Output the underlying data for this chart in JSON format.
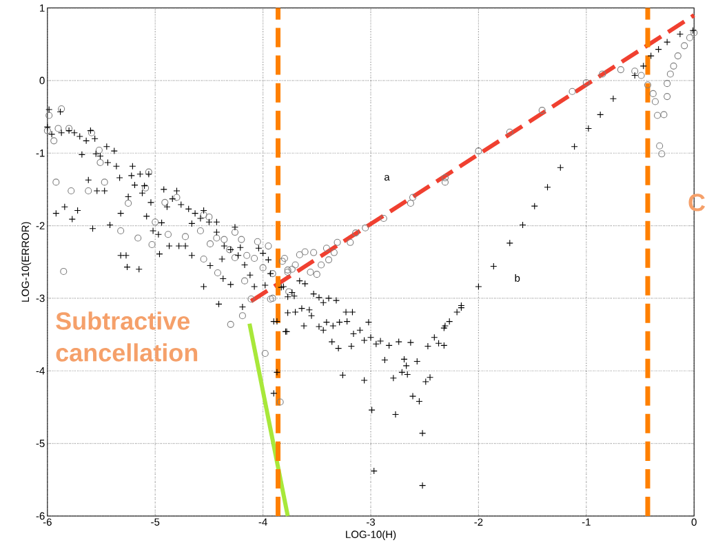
{
  "chart_data": {
    "type": "scatter",
    "xlabel": "LOG-10(H)",
    "ylabel": "LOG-10(ERROR)",
    "xlim": [
      -6,
      0
    ],
    "ylim": [
      -6,
      1
    ],
    "xticks": [
      -6,
      -5,
      -4,
      -3,
      -2,
      -1,
      0
    ],
    "yticks": [
      -6,
      -5,
      -4,
      -3,
      -2,
      -1,
      0,
      1
    ],
    "grid": true,
    "series": [
      {
        "marker": "circle",
        "color": "#7f7f7f",
        "x": [
          -5.985,
          -6.0,
          -5.94,
          -5.9,
          -5.8,
          -5.87,
          -5.59,
          -5.92,
          -5.78,
          -5.62,
          -5.47,
          -5.85,
          -5.51,
          -5.52,
          -5.32,
          -5.25,
          -5.16,
          -5.06,
          -5.09,
          -5.03,
          -5.0,
          -4.88,
          -4.91,
          -4.8,
          -4.72,
          -4.58,
          -4.55,
          -4.5,
          -4.55,
          -4.49,
          -4.43,
          -4.42,
          -4.36,
          -4.31,
          -4.26,
          -4.26,
          -4.2,
          -4.15,
          -4.17,
          -4.08,
          -4.05,
          -4.0,
          -3.95,
          -3.91,
          -4.11,
          -4.19,
          -4.3,
          -3.82,
          -3.73,
          -3.77,
          -3.93,
          -3.98,
          -3.84,
          -3.91,
          -3.76,
          -3.77,
          -3.8,
          -3.7,
          -3.66,
          -3.61,
          -3.53,
          -3.56,
          -3.5,
          -3.46,
          -3.41,
          -3.39,
          -3.34,
          -3.31,
          -3.19,
          -3.14,
          -3.05,
          -2.88,
          -2.63,
          -2.31,
          -2.61,
          -2.31,
          -2.0,
          -1.71,
          -1.41,
          -1.13,
          -1.0,
          -0.85,
          -0.68,
          -0.55,
          -0.49,
          -0.43,
          -0.38,
          -0.36,
          -0.34,
          -0.28,
          -0.32,
          -0.3,
          -0.25,
          -0.25,
          -0.22,
          -0.19,
          -0.15,
          -0.09,
          -0.04,
          0.0
        ],
        "values": [
          -0.48,
          -0.69,
          -0.83,
          -0.66,
          -0.66,
          -0.39,
          -0.72,
          -1.4,
          -1.52,
          -1.52,
          -1.4,
          -2.63,
          -1.13,
          -0.96,
          -2.07,
          -1.69,
          -2.17,
          -1.26,
          -1.48,
          -2.26,
          -1.95,
          -2.12,
          -1.68,
          -1.61,
          -2.15,
          -2.07,
          -1.85,
          -1.88,
          -2.46,
          -2.25,
          -2.17,
          -2.65,
          -2.19,
          -2.33,
          -2.44,
          -2.09,
          -2.19,
          -2.41,
          -2.76,
          -2.45,
          -2.22,
          -2.58,
          -2.28,
          -2.66,
          -3.01,
          -3.24,
          -3.36,
          -2.49,
          -2.6,
          -2.64,
          -3.01,
          -3.76,
          -4.43,
          -3.0,
          -2.91,
          -2.61,
          -2.45,
          -2.54,
          -2.4,
          -2.36,
          -2.37,
          -2.64,
          -2.67,
          -2.54,
          -2.31,
          -2.47,
          -2.37,
          -2.23,
          -2.23,
          -2.1,
          -2.03,
          -1.9,
          -1.69,
          -1.4,
          -1.61,
          -1.34,
          -0.97,
          -0.71,
          -0.41,
          -0.15,
          -0.03,
          0.09,
          0.15,
          0.13,
          0.07,
          -0.06,
          -0.18,
          -0.29,
          -0.48,
          -0.47,
          -0.9,
          -1.01,
          -0.22,
          -0.04,
          0.09,
          0.2,
          0.34,
          0.48,
          0.59,
          0.66
        ]
      },
      {
        "marker": "cross",
        "color": "#000000",
        "x": [
          -5.985,
          -5.88,
          -6.0,
          -5.96,
          -5.87,
          -5.8,
          -5.75,
          -5.7,
          -5.64,
          -5.6,
          -5.56,
          -5.68,
          -5.55,
          -5.45,
          -5.38,
          -5.51,
          -5.44,
          -5.36,
          -5.33,
          -5.62,
          -5.54,
          -5.47,
          -5.21,
          -5.22,
          -5.14,
          -5.06,
          -5.19,
          -5.1,
          -5.25,
          -5.12,
          -5.04,
          -5.08,
          -5.32,
          -5.92,
          -5.84,
          -5.77,
          -5.72,
          -5.58,
          -5.42,
          -5.32,
          -5.27,
          -5.26,
          -5.15,
          -5.02,
          -4.97,
          -4.94,
          -4.96,
          -4.92,
          -4.8,
          -4.89,
          -4.84,
          -4.76,
          -4.69,
          -4.63,
          -4.55,
          -4.58,
          -4.5,
          -4.43,
          -4.66,
          -4.43,
          -4.87,
          -4.78,
          -4.72,
          -4.66,
          -4.49,
          -4.38,
          -4.55,
          -4.37,
          -4.3,
          -4.26,
          -4.36,
          -4.3,
          -4.21,
          -4.23,
          -4.17,
          -4.12,
          -4.08,
          -4.04,
          -4.0,
          -3.95,
          -3.93,
          -3.98,
          -4.41,
          -4.19,
          -3.9,
          -3.79,
          -3.83,
          -3.77,
          -3.77,
          -3.87,
          -3.78,
          -3.9,
          -3.87,
          -3.81,
          -3.73,
          -3.71,
          -3.66,
          -3.61,
          -3.7,
          -3.64,
          -3.57,
          -3.55,
          -3.62,
          -3.53,
          -3.48,
          -3.44,
          -3.39,
          -3.32,
          -3.48,
          -3.44,
          -3.41,
          -3.35,
          -3.29,
          -3.22,
          -3.23,
          -3.17,
          -3.36,
          -3.3,
          -3.18,
          -3.26,
          -3.06,
          -2.99,
          -2.97,
          -3.16,
          -3.1,
          -3.06,
          -3.02,
          -3.0,
          -2.95,
          -2.91,
          -2.87,
          -2.83,
          -2.74,
          -2.63,
          -2.77,
          -2.52,
          -2.52,
          -2.69,
          -2.67,
          -2.57,
          -2.71,
          -2.79,
          -2.66,
          -2.61,
          -2.55,
          -2.49,
          -2.45,
          -2.47,
          -2.41,
          -2.37,
          -2.32,
          -2.32,
          -2.27,
          -2.2,
          -2.16,
          -2.31,
          -2.16,
          -2.0,
          -1.86,
          -1.71,
          -1.59,
          -1.48,
          -1.36,
          -1.24,
          -1.11,
          -0.98,
          -0.87,
          -0.75,
          -0.55,
          -0.47,
          -0.4,
          -0.33,
          -0.25,
          -0.13,
          -0.01
        ],
        "values": [
          -0.4,
          -0.43,
          -0.64,
          -0.74,
          -0.72,
          -0.69,
          -0.72,
          -0.77,
          -0.83,
          -0.69,
          -0.8,
          -1.02,
          -1.01,
          -0.91,
          -0.97,
          -1.04,
          -1.13,
          -1.18,
          -1.34,
          -1.37,
          -1.52,
          -1.52,
          -1.18,
          -1.31,
          -1.29,
          -1.29,
          -1.44,
          -1.45,
          -1.6,
          -1.55,
          -1.68,
          -1.87,
          -1.83,
          -1.83,
          -1.74,
          -1.91,
          -1.79,
          -2.04,
          -1.99,
          -2.41,
          -2.41,
          -2.57,
          -2.6,
          -2.07,
          -2.12,
          -1.96,
          -2.39,
          -1.5,
          -1.52,
          -1.74,
          -1.63,
          -1.71,
          -1.77,
          -1.83,
          -1.79,
          -1.9,
          -1.95,
          -1.95,
          -1.97,
          -2.09,
          -2.28,
          -2.28,
          -2.28,
          -2.41,
          -2.55,
          -2.46,
          -2.84,
          -2.73,
          -2.81,
          -2.02,
          -2.28,
          -2.33,
          -2.3,
          -2.41,
          -2.54,
          -2.68,
          -2.84,
          -2.31,
          -2.38,
          -2.47,
          -2.66,
          -2.82,
          -3.08,
          -3.12,
          -3.32,
          -3.46,
          -2.85,
          -2.98,
          -3.2,
          -3.32,
          -3.46,
          -4.31,
          -4.02,
          -2.84,
          -2.92,
          -2.97,
          -2.76,
          -2.8,
          -3.19,
          -3.14,
          -3.16,
          -3.24,
          -3.38,
          -2.94,
          -2.99,
          -3.06,
          -3.0,
          -3.03,
          -3.39,
          -3.44,
          -3.33,
          -3.38,
          -3.33,
          -3.32,
          -3.19,
          -3.19,
          -3.6,
          -3.69,
          -3.66,
          -4.06,
          -4.13,
          -4.54,
          -5.38,
          -3.49,
          -3.44,
          -3.58,
          -3.33,
          -3.54,
          -3.63,
          -3.59,
          -3.85,
          -3.65,
          -3.6,
          -3.61,
          -4.6,
          -4.86,
          -5.58,
          -3.84,
          -3.93,
          -3.87,
          -4.02,
          -4.1,
          -4.05,
          -4.35,
          -4.42,
          -4.15,
          -4.09,
          -3.66,
          -3.54,
          -3.62,
          -3.65,
          -3.41,
          -3.32,
          -3.19,
          -3.1,
          -3.38,
          -3.13,
          -2.84,
          -2.56,
          -2.24,
          -1.99,
          -1.73,
          -1.47,
          -1.2,
          -0.91,
          -0.66,
          -0.47,
          -0.25,
          0.07,
          0.2,
          0.34,
          0.43,
          0.53,
          0.64,
          0.69
        ]
      },
      {
        "type": "line",
        "line_style": "dashed",
        "color": "#f04030",
        "x": [
          -4.11,
          0
        ],
        "values": [
          -3.04,
          0.9
        ]
      },
      {
        "type": "line",
        "line_style": "solid",
        "color": "#a8e83a",
        "x": [
          -4.125,
          -3.77
        ],
        "values": [
          -3.35,
          -6
        ]
      }
    ],
    "ref_lines": [
      {
        "axis": "x",
        "value": -3.86,
        "color": "#ff8000",
        "line_style": "dashed"
      },
      {
        "axis": "x",
        "value": -0.43,
        "color": "#ff8000",
        "line_style": "dashed"
      }
    ],
    "annotations": [
      "Subtractive cancellation",
      "C",
      "a",
      "b"
    ]
  }
}
